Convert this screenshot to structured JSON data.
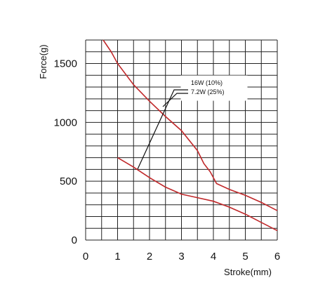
{
  "chart_data": {
    "type": "line",
    "xlabel": "Stroke(mm)",
    "ylabel": "Force(g)",
    "xlim": [
      0,
      6
    ],
    "ylim": [
      0,
      1700
    ],
    "x_ticks": [
      "0",
      "1",
      "2",
      "3",
      "4",
      "5",
      "6"
    ],
    "y_ticks": [
      {
        "value": 0,
        "label": "0"
      },
      {
        "value": 500,
        "label": "500"
      },
      {
        "value": 1000,
        "label": "1000"
      },
      {
        "value": 1500,
        "label": "1500"
      }
    ],
    "grid": true,
    "legend_position": "top-right",
    "series": [
      {
        "name": "16W (10%)",
        "color": "#c0282a",
        "points": [
          [
            0.55,
            1700
          ],
          [
            0.8,
            1600
          ],
          [
            1,
            1500
          ],
          [
            1.5,
            1320
          ],
          [
            2,
            1180
          ],
          [
            2.5,
            1050
          ],
          [
            3,
            930
          ],
          [
            3.5,
            760
          ],
          [
            3.7,
            650
          ],
          [
            3.9,
            580
          ],
          [
            4.1,
            480
          ],
          [
            4.5,
            430
          ],
          [
            5,
            380
          ],
          [
            5.5,
            320
          ],
          [
            6,
            250
          ]
        ]
      },
      {
        "name": "7.2W (25%)",
        "color": "#c0282a",
        "points": [
          [
            1,
            700
          ],
          [
            1.5,
            620
          ],
          [
            2,
            530
          ],
          [
            2.5,
            450
          ],
          [
            3,
            390
          ],
          [
            3.5,
            360
          ],
          [
            4,
            330
          ],
          [
            4.5,
            280
          ],
          [
            5,
            220
          ],
          [
            5.5,
            150
          ],
          [
            6,
            80
          ]
        ]
      }
    ],
    "legend": [
      "16W (10%)",
      "7.2W (25%)"
    ]
  }
}
